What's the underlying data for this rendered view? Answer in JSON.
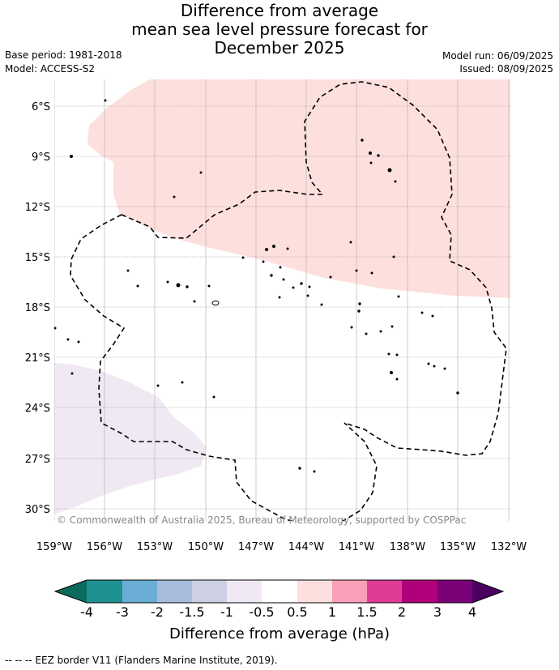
{
  "title": {
    "line1": "Difference from average",
    "line2": "mean sea level pressure forecast for",
    "line3": "December 2025"
  },
  "meta": {
    "base_period": "Base period: 1981-2018",
    "model": "Model: ACCESS-S2",
    "model_run": "Model run: 06/09/2025",
    "issued": "Issued: 08/09/2025"
  },
  "map": {
    "lat_labels": [
      "6°S",
      "9°S",
      "12°S",
      "15°S",
      "18°S",
      "21°S",
      "24°S",
      "27°S",
      "30°S"
    ],
    "lon_labels": [
      "159°W",
      "156°W",
      "153°W",
      "150°W",
      "147°W",
      "144°W",
      "141°W",
      "138°W",
      "135°W",
      "132°W"
    ],
    "copyright": "© Commonwealth of Australia 2025, Bureau of Meteorology, supported by COSPPac",
    "region_colors": {
      "positive": "#fde0de",
      "negative": "#f0e8f2"
    }
  },
  "colorbar": {
    "title": "Difference from average (hPa)",
    "ticks": [
      "-4",
      "-3",
      "-2",
      "-1.5",
      "-1",
      "-0.5",
      "0.5",
      "1",
      "1.5",
      "2",
      "3",
      "4"
    ],
    "colors": [
      "#0a6b5c",
      "#1f9090",
      "#6aaed6",
      "#a8bcdc",
      "#cdd0e4",
      "#f0e8f2",
      "#ffffff",
      "#fde0de",
      "#f8a0b8",
      "#e03c96",
      "#b0007a",
      "#7a0078",
      "#4a0060"
    ]
  },
  "footer": "-- -- -- EEZ border V11 (Flanders Marine Institute, 2019)."
}
